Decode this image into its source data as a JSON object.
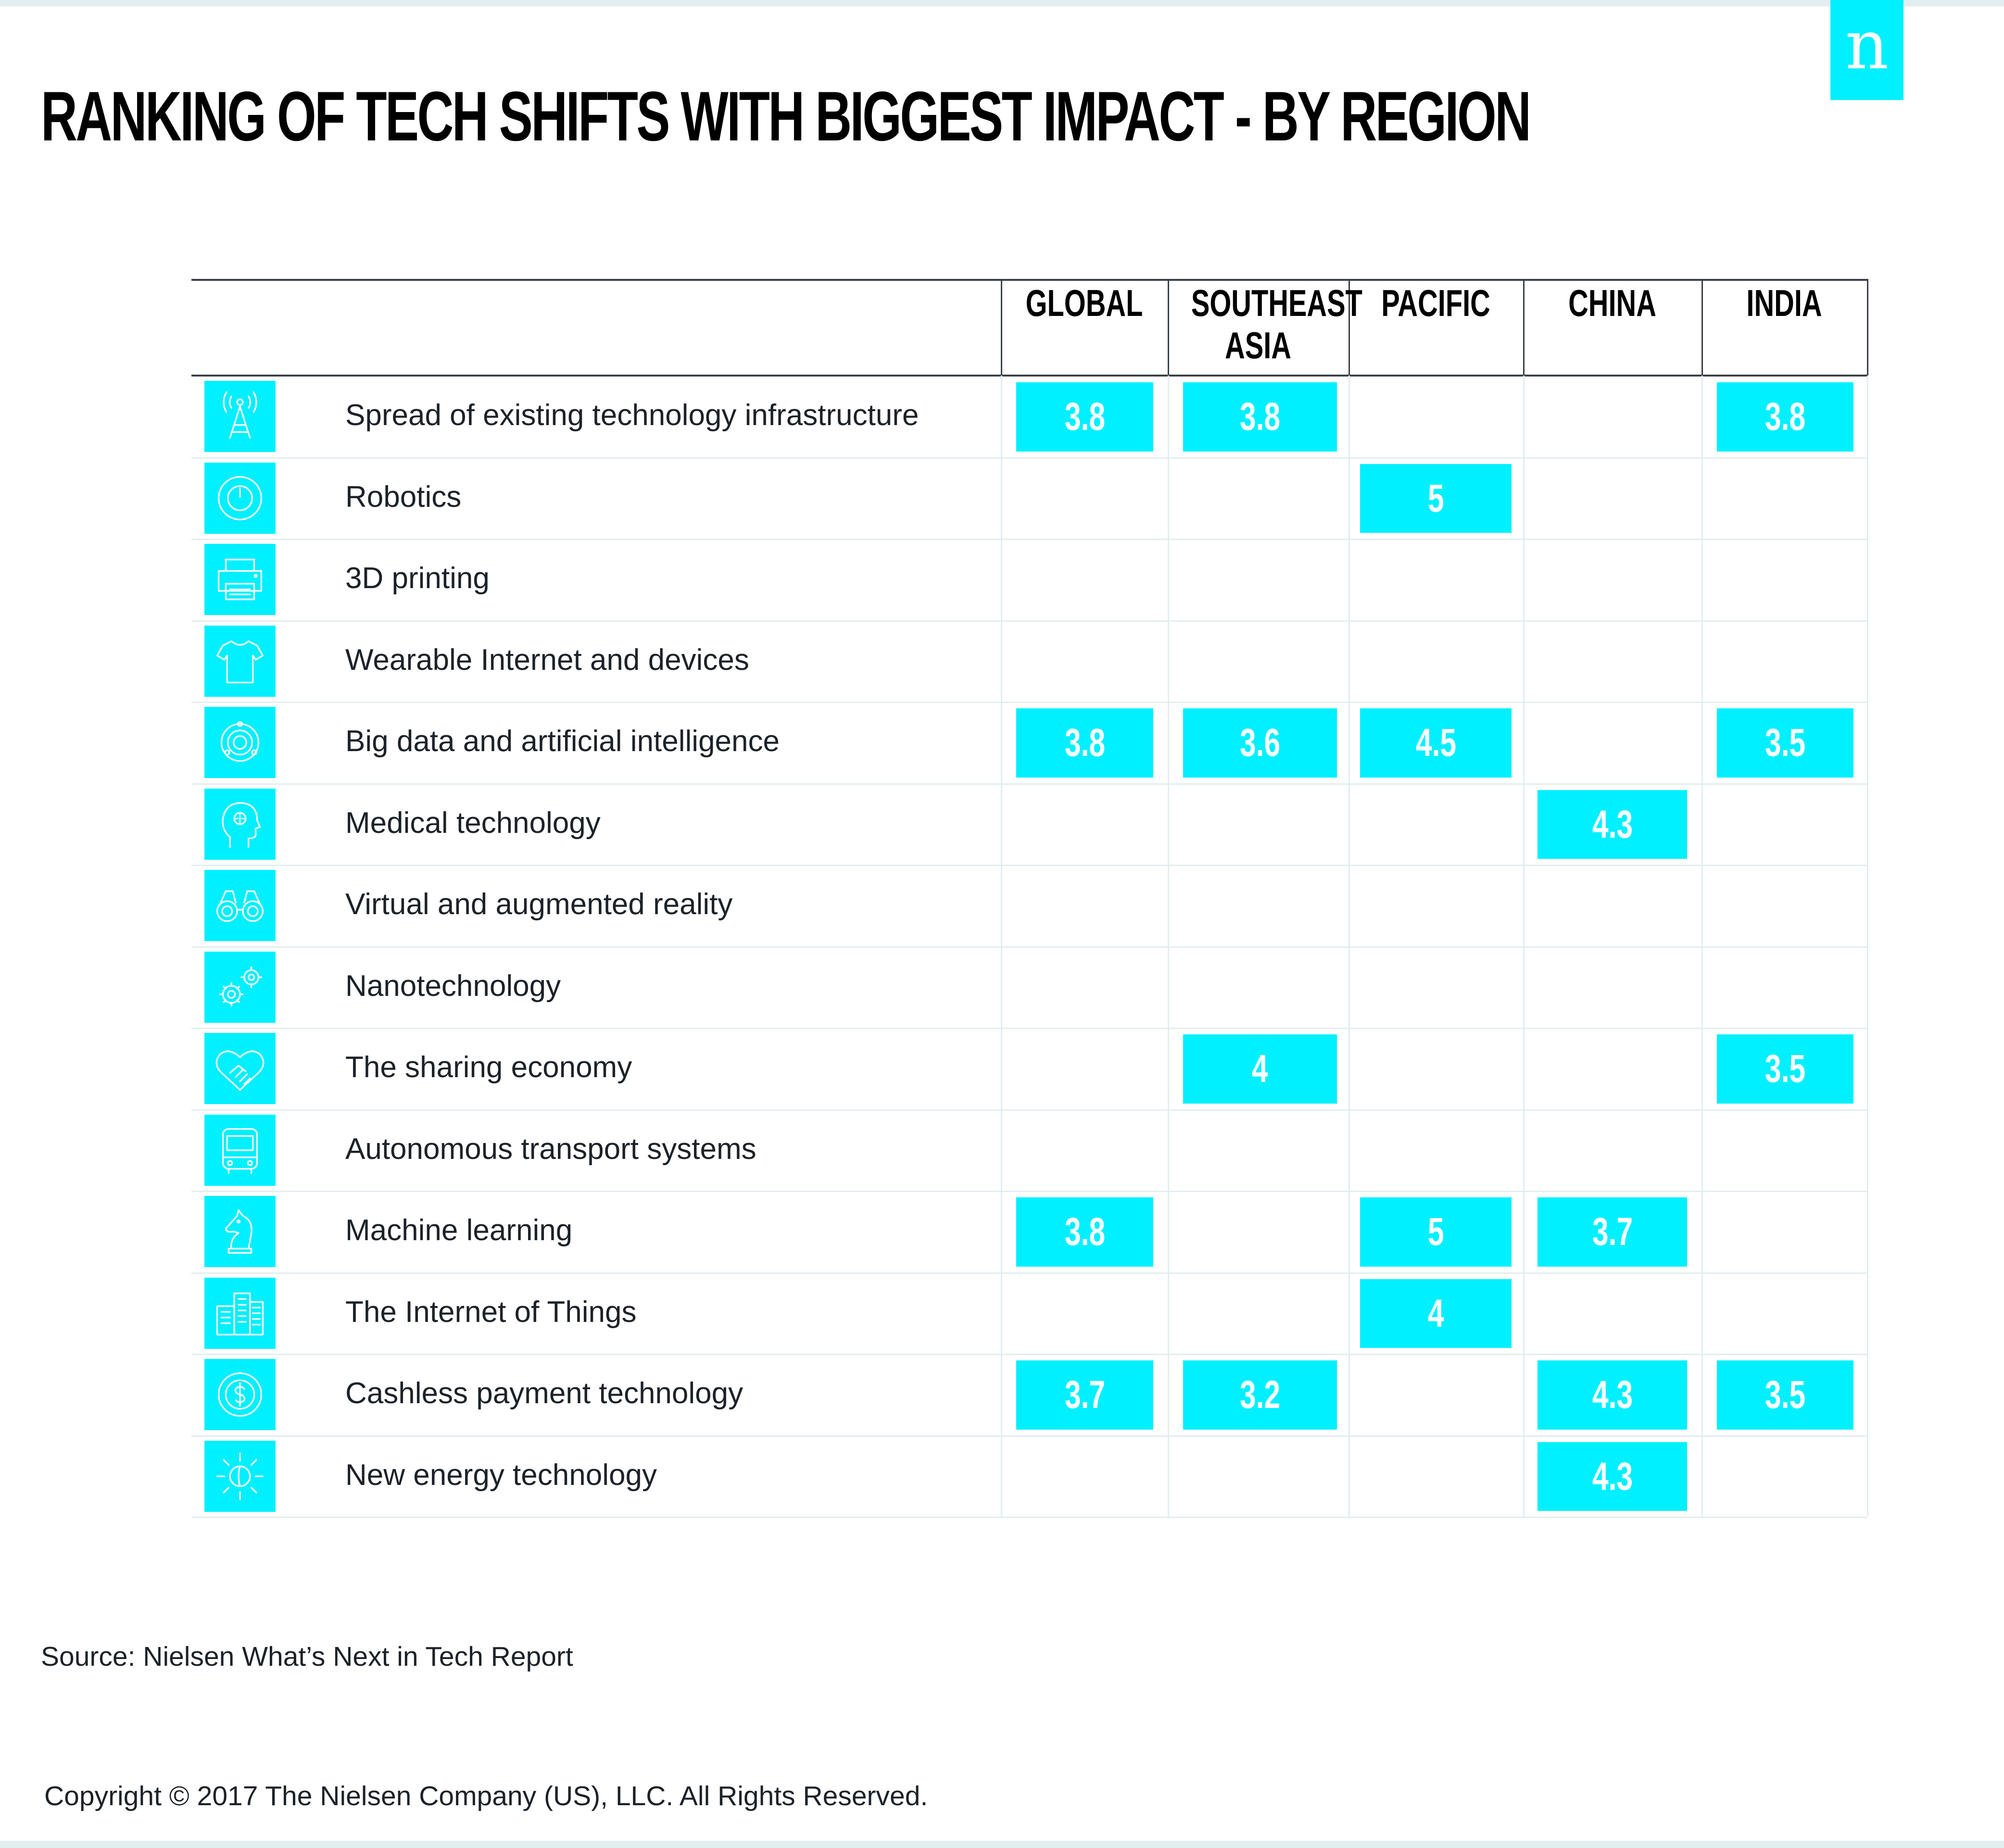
{
  "title": "RANKING OF TECH SHIFTS WITH BIGGEST IMPACT - BY REGION",
  "logo_letter": "n",
  "source": "Source: Nielsen What’s Next in Tech Report",
  "copyright": "Copyright © 2017 The Nielsen Company (US), LLC. All Rights Reserved.",
  "colors": {
    "accent": "#00f0ff",
    "text": "#1c2229",
    "rule": "#e2eef0",
    "frame": "#3a3f46"
  },
  "chart_data": {
    "type": "table",
    "title": "RANKING OF TECH SHIFTS WITH BIGGEST IMPACT - BY REGION",
    "columns": [
      "GLOBAL",
      "SOUTHEAST\nASIA",
      "PACIFIC",
      "CHINA",
      "INDIA"
    ],
    "rows": [
      {
        "label": "Spread of existing technology infrastructure",
        "icon": "antenna-tower-icon",
        "values": [
          "3.8",
          "3.8",
          null,
          null,
          "3.8"
        ]
      },
      {
        "label": "Robotics",
        "icon": "power-button-icon",
        "values": [
          null,
          null,
          "5",
          null,
          null
        ]
      },
      {
        "label": "3D printing",
        "icon": "printer-icon",
        "values": [
          null,
          null,
          null,
          null,
          null
        ]
      },
      {
        "label": "Wearable Internet and devices",
        "icon": "t-shirt-icon",
        "values": [
          null,
          null,
          null,
          null,
          null
        ]
      },
      {
        "label": "Big data and artificial intelligence",
        "icon": "orbit-icon",
        "values": [
          "3.8",
          "3.6",
          "4.5",
          null,
          "3.5"
        ]
      },
      {
        "label": "Medical technology",
        "icon": "head-profile-icon",
        "values": [
          null,
          null,
          null,
          "4.3",
          null
        ]
      },
      {
        "label": "Virtual and augmented reality",
        "icon": "binoculars-icon",
        "values": [
          null,
          null,
          null,
          null,
          null
        ]
      },
      {
        "label": "Nanotechnology",
        "icon": "gears-icon",
        "values": [
          null,
          null,
          null,
          null,
          null
        ]
      },
      {
        "label": "The sharing economy",
        "icon": "handshake-heart-icon",
        "values": [
          null,
          "4",
          null,
          null,
          "3.5"
        ]
      },
      {
        "label": "Autonomous transport systems",
        "icon": "bus-icon",
        "values": [
          null,
          null,
          null,
          null,
          null
        ]
      },
      {
        "label": "Machine learning",
        "icon": "chess-knight-icon",
        "values": [
          "3.8",
          null,
          "5",
          "3.7",
          null
        ]
      },
      {
        "label": "The Internet of Things",
        "icon": "buildings-icon",
        "values": [
          null,
          null,
          "4",
          null,
          null
        ]
      },
      {
        "label": "Cashless payment technology",
        "icon": "dollar-coin-icon",
        "values": [
          "3.7",
          "3.2",
          null,
          "4.3",
          "3.5"
        ]
      },
      {
        "label": "New energy technology",
        "icon": "sun-icon",
        "values": [
          null,
          null,
          null,
          "4.3",
          null
        ]
      }
    ]
  }
}
